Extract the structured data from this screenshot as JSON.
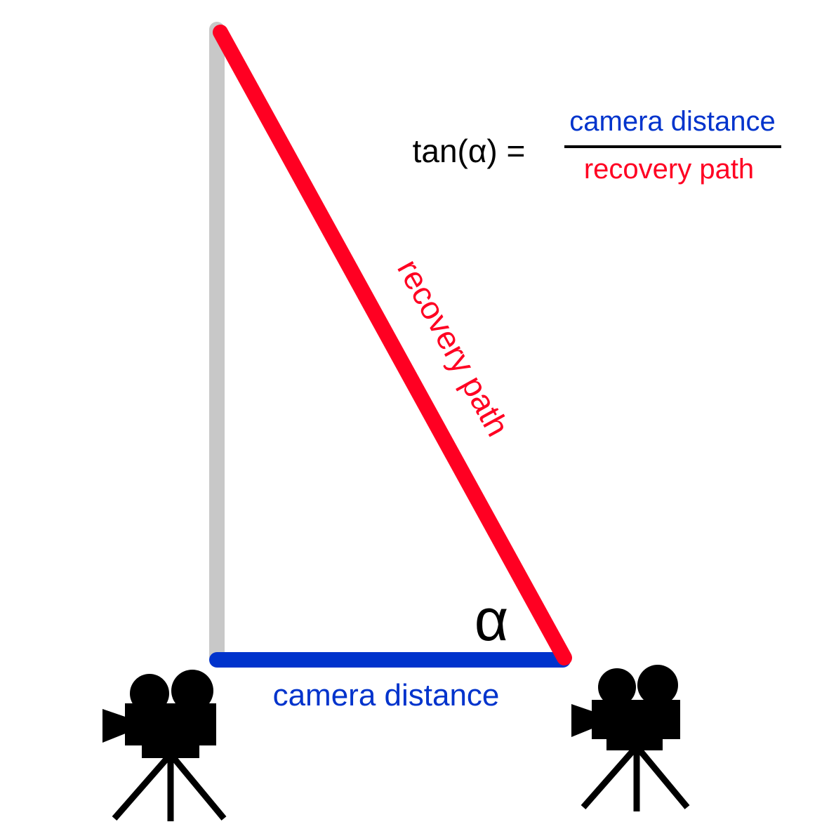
{
  "colors": {
    "background": "#ffffff",
    "vertical_line": "#c8c8c8",
    "recovery_path": "#ff0022",
    "camera_distance": "#0033cc",
    "formula_text": "#000000",
    "fraction_bar": "#000000",
    "camera_icon": "#000000"
  },
  "labels": {
    "recovery_path": "recovery path",
    "camera_distance": "camera distance",
    "angle": "α"
  },
  "formula": {
    "lhs": "tan(α) =",
    "numerator": "camera distance",
    "denominator": "recovery path"
  },
  "icons": {
    "left_camera": "movie-camera-icon",
    "right_camera": "movie-camera-icon"
  }
}
